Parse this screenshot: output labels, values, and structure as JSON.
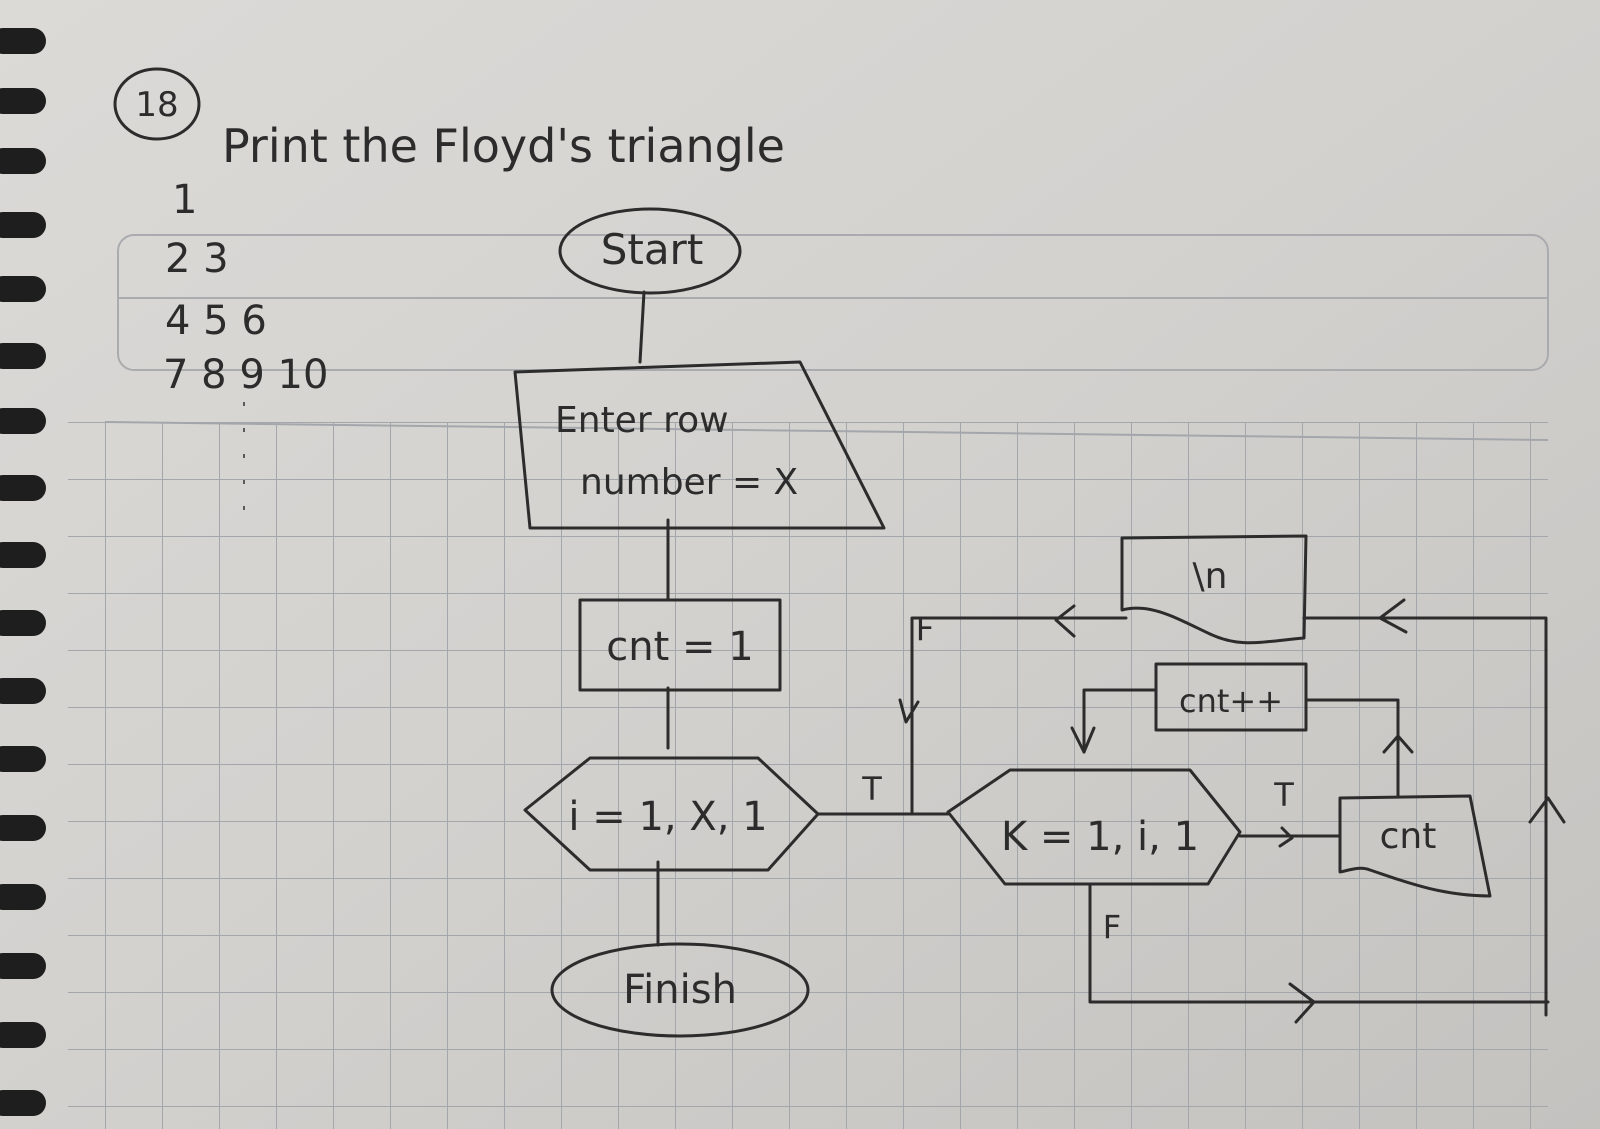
{
  "exercise": {
    "number": "18",
    "title": "Print the Floyd's triangle"
  },
  "example_output": {
    "rows": [
      "1",
      "2 3",
      "4 5 6",
      "7 8 9 10"
    ]
  },
  "flowchart": {
    "start": "Start",
    "input_line1": "Enter row",
    "input_line2": "number = X",
    "init": "cnt = 1",
    "outer_loop": "i = 1, X, 1",
    "inner_loop": "K = 1, i, 1",
    "increment": "cnt++",
    "output_cnt": "cnt",
    "output_newline": "\\n",
    "finish": "Finish",
    "label_true_outer": "T",
    "label_true_inner": "T",
    "label_false_outer": "F",
    "label_false_inner": "F"
  },
  "colors": {
    "paper": "#d6d4d1",
    "grid": "#9fa3a8",
    "ink": "#2c2c2c"
  }
}
